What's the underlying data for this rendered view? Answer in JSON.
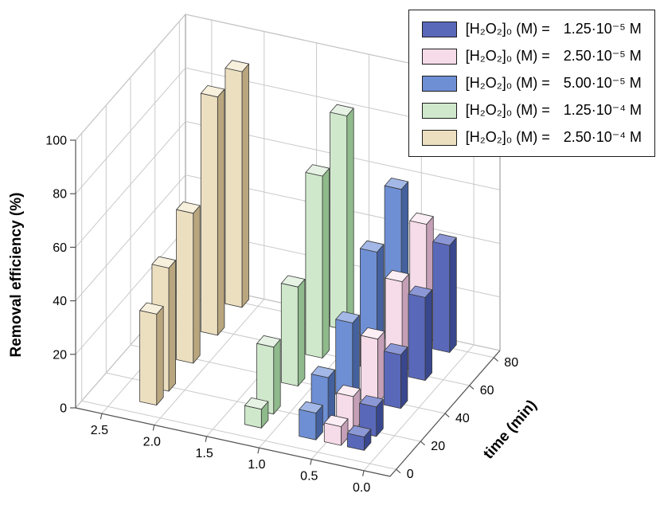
{
  "chart_data": {
    "type": "bar",
    "subtype": "3d-grouped-bars",
    "title": "",
    "zlabel": "Removal efficiency (%)",
    "time_label": "time (min)",
    "xlabel": "",
    "zlim": [
      0,
      100
    ],
    "z_ticks": [
      0,
      20,
      40,
      60,
      80,
      100
    ],
    "x_ticks": [
      2.5,
      2.0,
      1.5,
      1.0,
      0.5,
      0.0
    ],
    "time_ticks": [
      0,
      20,
      40,
      60,
      80
    ],
    "x_range": [
      -0.25,
      2.75
    ],
    "time_range": [
      -5,
      85
    ],
    "times": [
      10,
      20,
      40,
      60,
      80
    ],
    "grid": true,
    "legend_position": "top-right",
    "series": [
      {
        "legend_formula": "[H₂O₂]₀ (M) =",
        "legend_value": "1.25·10⁻⁵ M",
        "x": 0.22,
        "values": [
          5,
          11,
          20,
          31,
          40
        ],
        "color": "#5a68ba",
        "color_side": "#39478e",
        "color_top": "#8c97d6"
      },
      {
        "legend_formula": "[H₂O₂]₀ (M) =",
        "legend_value": "2.50·10⁻⁵ M",
        "x": 0.44,
        "values": [
          7,
          13,
          24,
          35,
          46
        ],
        "color": "#f6dbe9",
        "color_side": "#c49fb6",
        "color_top": "#fbeef5"
      },
      {
        "legend_formula": "[H₂O₂]₀ (M) =",
        "legend_value": "5.00·10⁻⁵ M",
        "x": 0.68,
        "values": [
          10,
          18,
          28,
          44,
          57
        ],
        "color": "#6e8fd4",
        "color_side": "#44619e",
        "color_top": "#a3b8e6"
      },
      {
        "legend_formula": "[H₂O₂]₀ (M) =",
        "legend_value": "1.25·10⁻⁴ M",
        "x": 1.2,
        "values": [
          7,
          25,
          37,
          68,
          80
        ],
        "color": "#cfe8cb",
        "color_side": "#8fba8c",
        "color_top": "#e6f3e4"
      },
      {
        "legend_formula": "[H₂O₂]₀ (M) =",
        "legend_value": "2.50·10⁻⁴ M",
        "x": 2.2,
        "values": [
          34,
          46,
          56,
          89,
          88
        ],
        "color": "#ecdfc0",
        "color_side": "#b9a67e",
        "color_top": "#f7f0dd"
      }
    ],
    "colors": {
      "grid": "#c9c9c9",
      "wall": "#ffffff",
      "wall_edge": "#8c8c8c",
      "axis": "#555555",
      "bar_outline": "#3a3a3a"
    }
  }
}
